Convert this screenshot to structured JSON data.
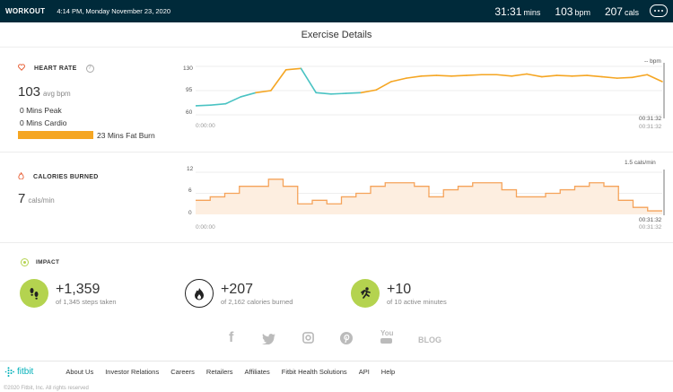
{
  "header": {
    "brand": "WORKOUT",
    "datetime": "4:14 PM, Monday November 23, 2020",
    "duration_value": "31:31",
    "duration_unit": "mins",
    "bpm_value": "103",
    "bpm_unit": "bpm",
    "cals_value": "207",
    "cals_unit": "cals",
    "more_icon": "ellipsis-icon"
  },
  "page_title": "Exercise Details",
  "heart_rate": {
    "label": "HEART RATE",
    "help": "?",
    "avg_value": "103",
    "avg_unit": "avg bpm",
    "peak": "0 Mins Peak",
    "cardio": "0 Mins Cardio",
    "fat_burn": "23 Mins Fat Burn",
    "right_label": "-- bpm",
    "colors": {
      "fat_burn": "#f5a623",
      "normal": "#4ac3c3"
    }
  },
  "calories": {
    "label": "CALORIES BURNED",
    "value": "7",
    "unit": "cals/min",
    "right_label": "1.5 cals/min",
    "color": "#f5a35a"
  },
  "chart_data": [
    {
      "type": "line",
      "title": "",
      "ylim": [
        60,
        130
      ],
      "yticks": [
        "130",
        "95",
        "60"
      ],
      "x_start_label": "0:00:00",
      "x_end_label": "00:31:32",
      "x_end_label_secondary": "00:31:32",
      "series": [
        {
          "x": [
            0,
            1,
            2,
            3,
            4,
            5,
            6,
            7,
            8,
            9,
            10,
            11,
            12,
            13,
            14,
            15,
            16,
            17,
            18,
            19,
            20,
            21,
            22,
            23,
            24,
            25,
            26,
            27,
            28,
            29,
            30,
            31
          ],
          "values": [
            73,
            74,
            76,
            86,
            92,
            95,
            125,
            127,
            92,
            90,
            91,
            92,
            96,
            108,
            113,
            116,
            117,
            116,
            117,
            118,
            118,
            116,
            119,
            115,
            117,
            116,
            117,
            115,
            113,
            114,
            118,
            108
          ],
          "zone": [
            0,
            0,
            0,
            0,
            0,
            1,
            1,
            1,
            0,
            0,
            0,
            0,
            1,
            1,
            1,
            1,
            1,
            1,
            1,
            1,
            1,
            1,
            1,
            1,
            1,
            1,
            1,
            1,
            1,
            1,
            1,
            1
          ]
        }
      ]
    },
    {
      "type": "area",
      "title": "",
      "ylim": [
        0,
        12
      ],
      "yticks": [
        "12",
        "6",
        "0"
      ],
      "x_start_label": "0:00:00",
      "x_end_label": "00:31:32",
      "x_end_label_secondary": "00:31:32",
      "x": [
        0,
        1,
        2,
        3,
        4,
        5,
        6,
        7,
        8,
        9,
        10,
        11,
        12,
        13,
        14,
        15,
        16,
        17,
        18,
        19,
        20,
        21,
        22,
        23,
        24,
        25,
        26,
        27,
        28,
        29,
        30,
        31
      ],
      "values": [
        4,
        5,
        6,
        8,
        8,
        10,
        8,
        3,
        4,
        3,
        5,
        6,
        8,
        9,
        9,
        8,
        5,
        7,
        8,
        9,
        9,
        7,
        5,
        5,
        6,
        7,
        8,
        9,
        8,
        4,
        2,
        1
      ]
    }
  ],
  "impact": {
    "label": "IMPACT",
    "items": [
      {
        "value": "+1,359",
        "sub": "of 1,345 steps taken",
        "icon": "footsteps-icon",
        "color": "#b4d34f"
      },
      {
        "value": "+207",
        "sub": "of 2,162 calories burned",
        "icon": "flame-icon",
        "color": "#ffffff"
      },
      {
        "value": "+10",
        "sub": "of 10 active minutes",
        "icon": "runner-icon",
        "color": "#b4d34f"
      }
    ]
  },
  "social": {
    "facebook": "f",
    "youtube": "You",
    "blog": "BLOG"
  },
  "footer": {
    "logo": "fitbit",
    "links": [
      "About Us",
      "Investor Relations",
      "Careers",
      "Retailers",
      "Affiliates",
      "Fitbit Health Solutions",
      "API",
      "Help"
    ],
    "copyright": "©2020 Fitbit, Inc. All rights reserved"
  }
}
